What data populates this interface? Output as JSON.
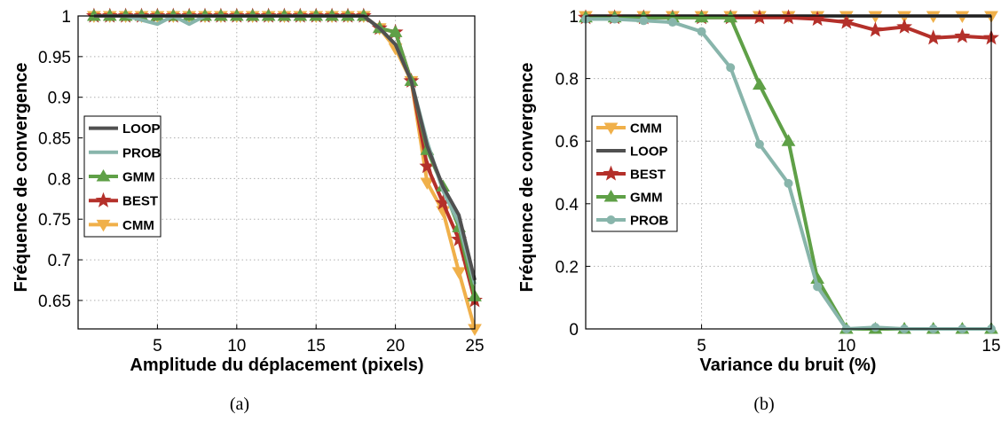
{
  "chart_data": [
    {
      "type": "line",
      "caption": "(a)",
      "xlabel": "Amplitude du déplacement (pixels)",
      "ylabel": "Fréquence de convergence",
      "xlim": [
        0,
        25
      ],
      "ylim": [
        0.615,
        1.0
      ],
      "xticks": [
        5,
        10,
        15,
        20,
        25
      ],
      "xtick_labels": [
        "5",
        "10",
        "15",
        "20",
        "25"
      ],
      "yticks": [
        0.65,
        0.7,
        0.75,
        0.8,
        0.85,
        0.9,
        0.95,
        1
      ],
      "ytick_labels": [
        "0.65",
        "0.7",
        "0.75",
        "0.8",
        "0.85",
        "0.9",
        "0.95",
        "1"
      ],
      "grid": true,
      "legend_position": "middle-left",
      "x": [
        1,
        2,
        3,
        4,
        5,
        6,
        7,
        8,
        9,
        10,
        11,
        12,
        13,
        14,
        15,
        16,
        17,
        18,
        19,
        20,
        21,
        22,
        23,
        24,
        25
      ],
      "series": [
        {
          "name": "LOOP",
          "color": "#505050",
          "marker": "none",
          "values": [
            1,
            1,
            1,
            1,
            1,
            1,
            1,
            1,
            1,
            1,
            1,
            1,
            1,
            1,
            1,
            1,
            1,
            1,
            0.985,
            0.965,
            0.92,
            0.84,
            0.79,
            0.755,
            0.675
          ]
        },
        {
          "name": "PROB",
          "color": "#88b5ab",
          "marker": "none",
          "values": [
            1,
            1,
            1,
            0.995,
            0.99,
            1,
            0.99,
            1,
            1,
            1,
            1,
            1,
            1,
            1,
            1,
            1,
            1,
            1,
            0.985,
            0.965,
            0.92,
            0.845,
            0.785,
            0.745,
            0.67
          ]
        },
        {
          "name": "GMM",
          "color": "#5fa047",
          "marker": "triangle-up",
          "values": [
            1,
            1,
            1,
            1,
            1,
            1,
            1,
            1,
            1,
            1,
            1,
            1,
            1,
            1,
            1,
            1,
            1,
            1,
            0.985,
            0.98,
            0.92,
            0.835,
            0.79,
            0.74,
            0.655
          ]
        },
        {
          "name": "BEST",
          "color": "#b4302a",
          "marker": "star",
          "values": [
            1,
            1,
            1,
            1,
            1,
            1,
            1,
            1,
            1,
            1,
            1,
            1,
            1,
            1,
            1,
            1,
            1,
            1,
            0.985,
            0.98,
            0.92,
            0.815,
            0.77,
            0.725,
            0.65
          ]
        },
        {
          "name": "CMM",
          "color": "#f0b04a",
          "marker": "triangle-down",
          "values": [
            1,
            1,
            1,
            1,
            1,
            1,
            1,
            1,
            1,
            1,
            1,
            1,
            1,
            1,
            1,
            1,
            1,
            1,
            0.985,
            0.96,
            0.92,
            0.795,
            0.76,
            0.685,
            0.615
          ]
        }
      ]
    },
    {
      "type": "line",
      "caption": "(b)",
      "xlabel": "Variance du bruit (%)",
      "ylabel": "Fréquence de convergence",
      "xlim": [
        1,
        15
      ],
      "ylim": [
        0,
        1
      ],
      "xticks": [
        5,
        10,
        15
      ],
      "xtick_labels": [
        "5",
        "10",
        "15"
      ],
      "yticks": [
        0,
        0.2,
        0.4,
        0.6,
        0.8,
        1
      ],
      "ytick_labels": [
        "0",
        "0.2",
        "0.4",
        "0.6",
        "0.8",
        "1"
      ],
      "grid": true,
      "legend_position": "middle-left",
      "x": [
        1,
        2,
        3,
        4,
        5,
        6,
        7,
        8,
        9,
        10,
        11,
        12,
        13,
        14,
        15
      ],
      "series": [
        {
          "name": "CMM",
          "color": "#f0b04a",
          "marker": "triangle-down",
          "values": [
            1,
            1,
            1,
            1,
            1,
            1,
            1,
            1,
            1,
            1,
            1,
            1,
            1,
            1,
            1
          ]
        },
        {
          "name": "LOOP",
          "color": "#505050",
          "marker": "none",
          "values": [
            1,
            1,
            1,
            1,
            1,
            1,
            1,
            1,
            1,
            1,
            1,
            1,
            1,
            1,
            1
          ]
        },
        {
          "name": "BEST",
          "color": "#b4302a",
          "marker": "star",
          "values": [
            0.995,
            0.995,
            0.995,
            0.995,
            0.995,
            0.995,
            0.995,
            0.995,
            0.99,
            0.98,
            0.955,
            0.965,
            0.93,
            0.935,
            0.93
          ]
        },
        {
          "name": "GMM",
          "color": "#5fa047",
          "marker": "triangle-up",
          "values": [
            0.995,
            0.995,
            0.995,
            0.995,
            0.995,
            0.995,
            0.78,
            0.6,
            0.16,
            0.0,
            0.0,
            0.0,
            0.0,
            0.0,
            0.0
          ]
        },
        {
          "name": "PROB",
          "color": "#88b5ab",
          "marker": "circle",
          "values": [
            0.99,
            0.99,
            0.985,
            0.98,
            0.95,
            0.835,
            0.59,
            0.465,
            0.135,
            0.0,
            0.005,
            0.0,
            0.0,
            0.0,
            0.0
          ]
        }
      ]
    }
  ]
}
